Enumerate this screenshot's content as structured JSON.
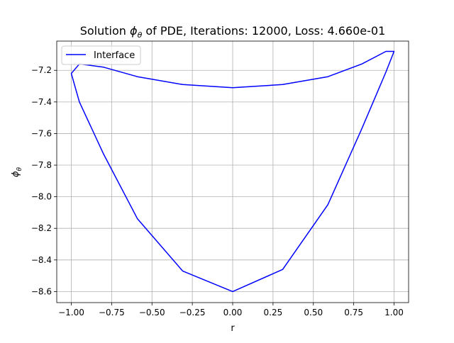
{
  "chart_data": {
    "type": "line",
    "title_main": "Solution ",
    "title_symbol": "ϕ",
    "title_symbol_sub": "θ",
    "title_rest": " of PDE, Iterations: 12000, Loss: 4.660e-01",
    "xlabel": "r",
    "ylabel_symbol": "ϕ",
    "ylabel_sub": "θ",
    "xlim": [
      -1.09,
      1.09
    ],
    "ylim": [
      -8.67,
      -7.015
    ],
    "xticks": [
      -1.0,
      -0.75,
      -0.5,
      -0.25,
      0.0,
      0.25,
      0.5,
      0.75,
      1.0
    ],
    "xtick_labels": [
      "−1.00",
      "−0.75",
      "−0.50",
      "−0.25",
      "0.00",
      "0.25",
      "0.50",
      "0.75",
      "1.00"
    ],
    "yticks": [
      -8.6,
      -8.4,
      -8.2,
      -8.0,
      -7.8,
      -7.6,
      -7.4,
      -7.2
    ],
    "ytick_labels": [
      "−8.6",
      "−8.4",
      "−8.2",
      "−8.0",
      "−7.8",
      "−7.6",
      "−7.4",
      "−7.2"
    ],
    "grid": true,
    "legend_position": "top-left",
    "series": [
      {
        "name": "Interface",
        "color": "#0000ff",
        "x": [
          1.0,
          0.95,
          0.8,
          0.59,
          0.31,
          0.0,
          -0.31,
          -0.59,
          -0.8,
          -0.95,
          -1.0,
          -0.95,
          -0.8,
          -0.59,
          -0.31,
          0.0,
          0.31,
          0.59,
          0.8,
          0.95,
          1.0
        ],
        "y": [
          -7.08,
          -7.08,
          -7.16,
          -7.24,
          -7.29,
          -7.31,
          -7.29,
          -7.24,
          -7.18,
          -7.16,
          -7.22,
          -7.4,
          -7.73,
          -8.14,
          -8.47,
          -8.6,
          -8.46,
          -8.05,
          -7.57,
          -7.21,
          -7.08
        ]
      }
    ]
  }
}
